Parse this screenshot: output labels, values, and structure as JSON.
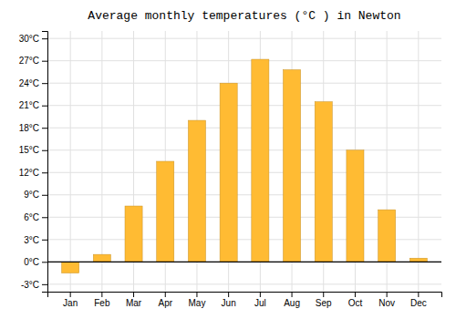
{
  "chart_data": {
    "type": "bar",
    "title": "Average monthly temperatures (°C ) in Newton",
    "categories": [
      "Jan",
      "Feb",
      "Mar",
      "Apr",
      "May",
      "Jun",
      "Jul",
      "Aug",
      "Sep",
      "Oct",
      "Nov",
      "Dec"
    ],
    "values": [
      -1.5,
      1.0,
      7.5,
      13.5,
      19.0,
      24.0,
      27.2,
      25.8,
      21.5,
      15.0,
      7.0,
      0.5
    ],
    "color": "#FFBB33",
    "ylim": [
      -4,
      31
    ],
    "yticks": [
      {
        "value": -3,
        "label": "-3°C"
      },
      {
        "value": 0,
        "label": "0°C"
      },
      {
        "value": 3,
        "label": "3°C"
      },
      {
        "value": 6,
        "label": "6°C"
      },
      {
        "value": 9,
        "label": "9°C"
      },
      {
        "value": 12,
        "label": "12°C"
      },
      {
        "value": 15,
        "label": "15°C"
      },
      {
        "value": 18,
        "label": "18°C"
      },
      {
        "value": 21,
        "label": "21°C"
      },
      {
        "value": 24,
        "label": "24°C"
      },
      {
        "value": 27,
        "label": "27°C"
      },
      {
        "value": 30,
        "label": "30°C"
      }
    ],
    "grid": true
  }
}
